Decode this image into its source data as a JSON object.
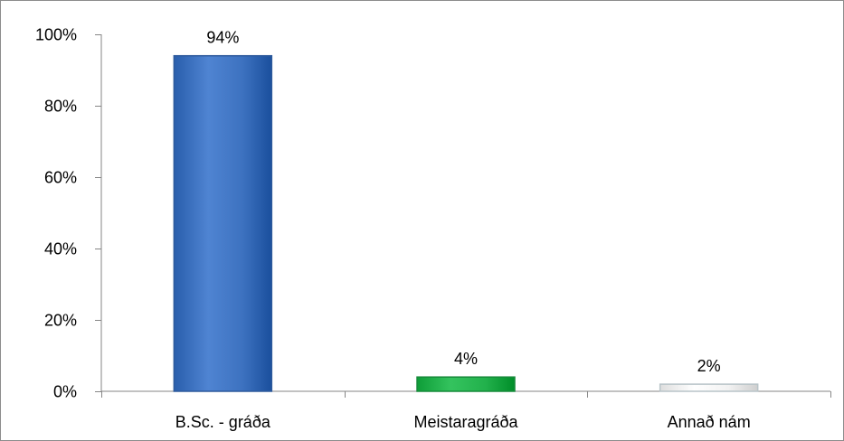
{
  "chart_data": {
    "type": "bar",
    "title": "",
    "xlabel": "",
    "ylabel": "",
    "categories": [
      "B.Sc. - gráða",
      "Meistaragráða",
      "Annað nám"
    ],
    "values": [
      94,
      4,
      2
    ],
    "data_labels": [
      "94%",
      "4%",
      "2%"
    ],
    "bar_colors": [
      "#3d72c0",
      "#22b14c",
      "#f2f2f2"
    ],
    "bar_edge_colors": [
      "#2e5a9c",
      "#178a3a",
      "#b8c4c8"
    ],
    "ylim": [
      0,
      100
    ],
    "yticks": [
      0,
      20,
      40,
      60,
      80,
      100
    ],
    "ytick_labels": [
      "0%",
      "20%",
      "40%",
      "60%",
      "80%",
      "100%"
    ],
    "grid": false,
    "legend": "none"
  }
}
